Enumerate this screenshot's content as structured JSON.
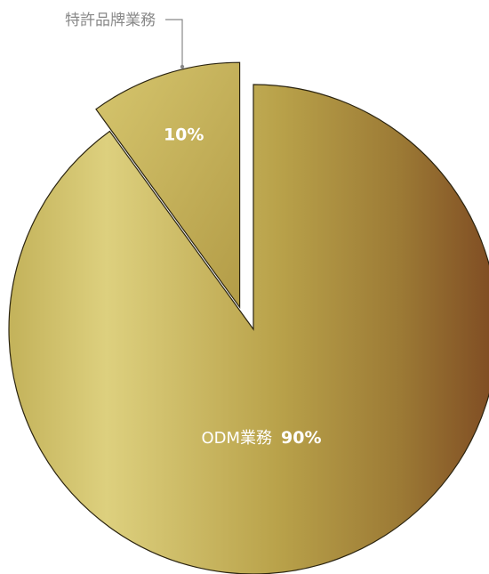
{
  "chart_data": {
    "type": "pie",
    "title": "",
    "slices": [
      {
        "name": "ODM業務",
        "value": 90,
        "label": "90%",
        "exploded": false
      },
      {
        "name": "特許品牌業務",
        "value": 10,
        "label": "10%",
        "exploded": true
      }
    ],
    "legend": "none",
    "colors": {
      "gold_light": "#ddd07e",
      "gold_mid": "#b9a24a",
      "bronze_dark": "#7e4a22",
      "label_white": "#ffffff",
      "callout_gray": "#888888"
    }
  }
}
